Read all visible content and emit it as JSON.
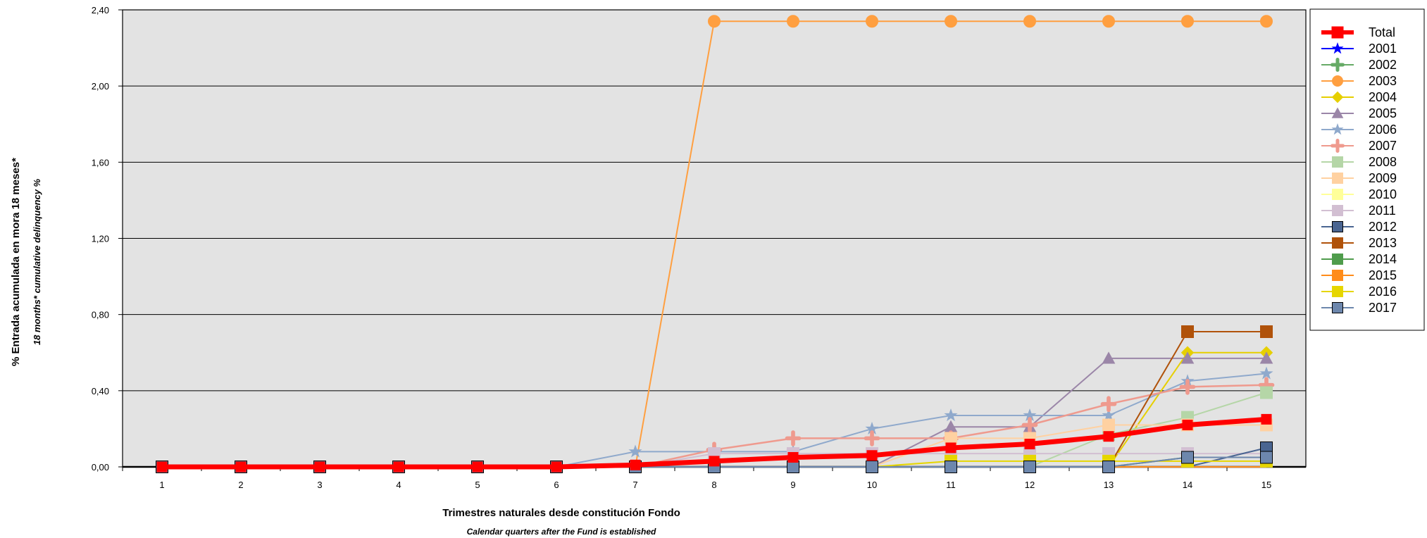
{
  "chart_data": {
    "type": "line",
    "ylabel": "% Entrada acumulada en mora 18 meses*",
    "ylabel_sub": "18 months* cumulative delinquency %",
    "xlabel": "Trimestres naturales desde constitución Fondo",
    "xlabel_sub": "Calendar quarters after the Fund is established",
    "ylim": [
      0,
      2.4
    ],
    "yticks": [
      "0,00",
      "0,40",
      "0,80",
      "1,20",
      "1,60",
      "2,00",
      "2,40"
    ],
    "x": [
      1,
      2,
      3,
      4,
      5,
      6,
      7,
      8,
      9,
      10,
      11,
      12,
      13,
      14,
      15
    ],
    "grid": true,
    "legend_position": "right",
    "background": "#e3e3e3",
    "series": [
      {
        "name": "Total",
        "color": "#ff0000",
        "marker": "square",
        "width": 7,
        "values": [
          0,
          0,
          0,
          0,
          0,
          0,
          0.01,
          0.03,
          0.05,
          0.06,
          0.1,
          0.12,
          0.16,
          0.22,
          0.25
        ]
      },
      {
        "name": "2001",
        "color": "#0000ff",
        "marker": "star",
        "width": 1.5,
        "values": [
          0,
          0,
          0,
          0,
          0,
          0,
          0,
          0,
          0,
          0,
          0,
          0,
          0,
          0,
          0
        ]
      },
      {
        "name": "2002",
        "color": "#66aa66",
        "marker": "plus",
        "width": 1.5,
        "values": [
          0,
          0,
          0,
          0,
          0,
          0,
          0,
          0,
          0,
          0,
          0,
          0,
          0,
          0,
          0
        ]
      },
      {
        "name": "2003",
        "color": "#ff9f40",
        "marker": "circle",
        "width": 2,
        "values": [
          0,
          0,
          0,
          0,
          0,
          0,
          0,
          2.34,
          2.34,
          2.34,
          2.34,
          2.34,
          2.34,
          2.34,
          2.34
        ]
      },
      {
        "name": "2004",
        "color": "#e6cf00",
        "marker": "diamond",
        "width": 2,
        "values": [
          0,
          0,
          0,
          0,
          0,
          0,
          0,
          0,
          0,
          0,
          0,
          0,
          0,
          0.6,
          0.6
        ]
      },
      {
        "name": "2005",
        "color": "#9b86a8",
        "marker": "triangle",
        "width": 2,
        "values": [
          0,
          0,
          0,
          0,
          0,
          0,
          0,
          0,
          0,
          0,
          0.21,
          0.21,
          0.57,
          0.57,
          0.57
        ]
      },
      {
        "name": "2006",
        "color": "#8fa9cc",
        "marker": "star",
        "width": 2,
        "values": [
          0,
          0,
          0,
          0,
          0,
          0,
          0.08,
          0.08,
          0.08,
          0.2,
          0.27,
          0.27,
          0.27,
          0.45,
          0.49
        ]
      },
      {
        "name": "2007",
        "color": "#ef9a8e",
        "marker": "plus",
        "width": 2.5,
        "values": [
          0,
          0,
          0,
          0,
          0,
          0,
          0,
          0.09,
          0.15,
          0.15,
          0.15,
          0.22,
          0.33,
          0.42,
          0.43
        ]
      },
      {
        "name": "2008",
        "color": "#b5d6a7",
        "marker": "square",
        "width": 2,
        "values": [
          0,
          0,
          0,
          0,
          0,
          0,
          0,
          0,
          0,
          0,
          0,
          0,
          0.17,
          0.26,
          0.39
        ]
      },
      {
        "name": "2009",
        "color": "#ffd1a1",
        "marker": "square",
        "width": 2,
        "values": [
          0,
          0,
          0,
          0,
          0,
          0,
          0,
          0,
          0,
          0,
          0.15,
          0.15,
          0.22,
          0.22,
          0.22
        ]
      },
      {
        "name": "2010",
        "color": "#ffff99",
        "marker": "square",
        "width": 2,
        "values": [
          0,
          0,
          0,
          0,
          0,
          0,
          0,
          0,
          0,
          0,
          0,
          0,
          0,
          0,
          0
        ]
      },
      {
        "name": "2011",
        "color": "#d2bfd2",
        "marker": "square",
        "width": 2,
        "values": [
          0,
          0,
          0,
          0,
          0,
          0,
          0,
          0.07,
          0.07,
          0.07,
          0.07,
          0.07,
          0.07,
          0.07,
          0.07
        ]
      },
      {
        "name": "2012",
        "color": "#4a6591",
        "marker": "square",
        "width": 2,
        "values": [
          0,
          0,
          0,
          0,
          0,
          0,
          0,
          0,
          0,
          0,
          0,
          0,
          0,
          0,
          0.1
        ]
      },
      {
        "name": "2013",
        "color": "#b0520a",
        "marker": "square",
        "width": 2,
        "values": [
          0,
          0,
          0,
          0,
          0,
          0,
          0,
          0,
          0,
          0,
          0,
          0,
          0,
          0.71,
          0.71
        ]
      },
      {
        "name": "2014",
        "color": "#4f9c4c",
        "marker": "square",
        "width": 2,
        "values": [
          0,
          0,
          0,
          0,
          0,
          0,
          0,
          0,
          0,
          0,
          0,
          0,
          0,
          0.05,
          0.05
        ]
      },
      {
        "name": "2015",
        "color": "#ff8c1a",
        "marker": "square",
        "width": 2,
        "values": [
          0,
          0,
          0,
          0,
          0,
          0,
          0,
          0,
          0,
          0,
          0,
          0,
          0,
          0,
          0
        ]
      },
      {
        "name": "2016",
        "color": "#e6d600",
        "marker": "square",
        "width": 2,
        "values": [
          0,
          0,
          0,
          0,
          0,
          0,
          0,
          0,
          0,
          0,
          0.03,
          0.03,
          0.03,
          0.03,
          0.03
        ]
      },
      {
        "name": "2017",
        "color": "#6d87ad",
        "marker": "square",
        "width": 2,
        "values": [
          0,
          0,
          0,
          0,
          0,
          0,
          0,
          0,
          0,
          0,
          0,
          0,
          0,
          0.05,
          0.05
        ]
      }
    ]
  }
}
